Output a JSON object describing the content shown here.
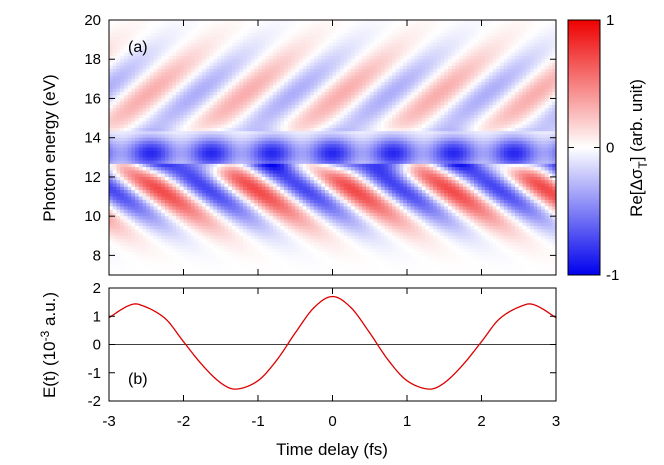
{
  "chart_data": [
    {
      "type": "heatmap",
      "panel_label": "(a)",
      "xlabel": "",
      "ylabel": "Photon energy (eV)",
      "xlim": [
        -3,
        3
      ],
      "ylim": [
        7,
        20
      ],
      "yticks": [
        8,
        10,
        12,
        14,
        16,
        18,
        20
      ],
      "yticklabels": [
        "8",
        "10",
        "12",
        "14",
        "16",
        "18",
        "20"
      ],
      "colorbar": {
        "label": "Re[Δσ",
        "label_sub": "T",
        "label_end": "] (arb. unit)",
        "range": [
          -1,
          1
        ],
        "ticks": [
          1,
          0,
          -1
        ],
        "ticklabels": [
          "1",
          "0",
          "-1"
        ],
        "colors": {
          "min": "#0000ee",
          "mid": "#ffffff",
          "max": "#ee0000"
        }
      },
      "description_values": {
        "band_center_eV": 13.2,
        "band_value": -0.85,
        "fringe_period_fs": 1.3
      }
    },
    {
      "type": "line",
      "panel_label": "(b)",
      "xlabel": "Time delay (fs)",
      "ylabel": "E(t) (10",
      "ylabel_sup": "-3",
      "ylabel_end": " a.u.)",
      "xlim": [
        -3,
        3
      ],
      "ylim": [
        -2,
        2
      ],
      "xticks": [
        -3,
        -2,
        -1,
        0,
        1,
        2,
        3
      ],
      "xticklabels": [
        "-3",
        "-2",
        "-1",
        "0",
        "1",
        "2",
        "3"
      ],
      "yticks": [
        -2,
        -1,
        0,
        1,
        2
      ],
      "yticklabels": [
        "-2",
        "-1",
        "0",
        "1",
        "2"
      ],
      "line_color": "#dd0000",
      "series": [
        {
          "x": [
            -3.0,
            -2.75,
            -2.6,
            -2.25,
            -2.0,
            -1.75,
            -1.5,
            -1.3,
            -1.0,
            -0.75,
            -0.5,
            -0.25,
            0.0,
            0.25,
            0.5,
            0.75,
            1.0,
            1.3,
            1.5,
            1.75,
            2.0,
            2.25,
            2.6,
            2.75,
            3.0
          ],
          "y": [
            0.95,
            1.36,
            1.42,
            0.93,
            0.1,
            -0.72,
            -1.36,
            -1.58,
            -1.28,
            -0.56,
            0.41,
            1.3,
            1.7,
            1.3,
            0.41,
            -0.56,
            -1.28,
            -1.58,
            -1.36,
            -0.72,
            0.1,
            0.93,
            1.42,
            1.36,
            0.95
          ]
        }
      ]
    }
  ]
}
